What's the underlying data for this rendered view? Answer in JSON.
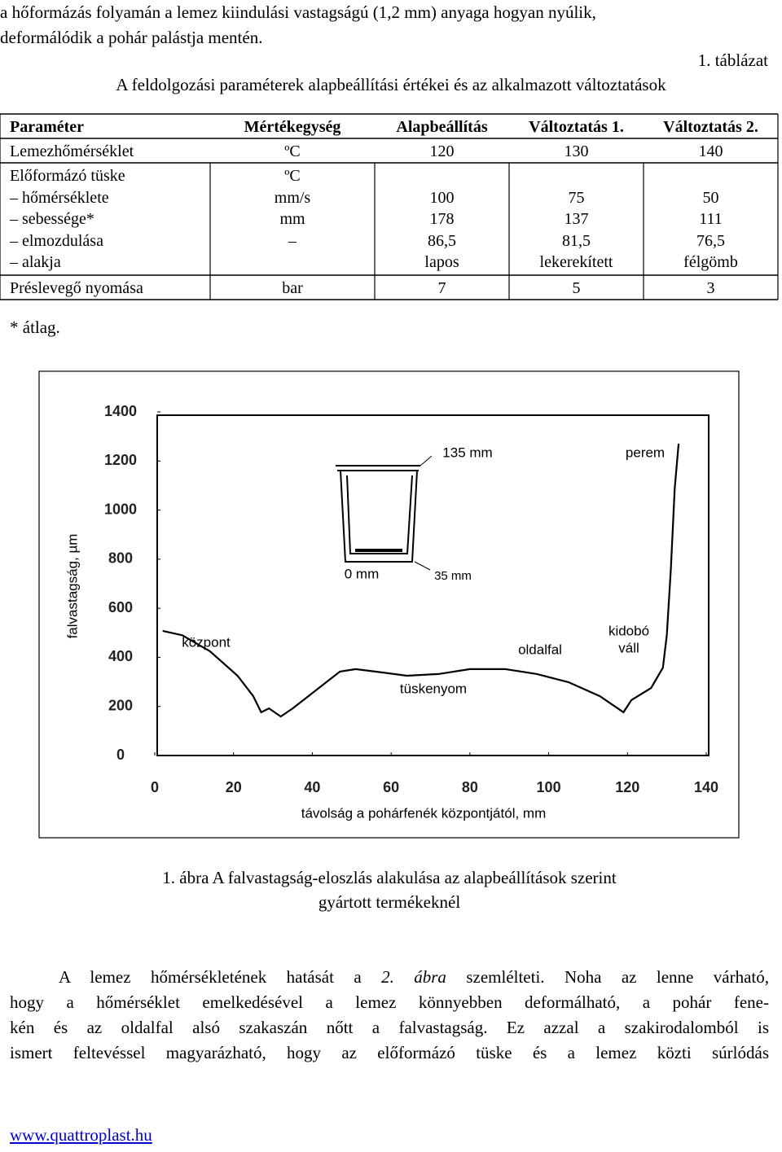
{
  "intro": [
    "a hőformázás folyamán a lemez kiindulási vastagságú (1,2 mm) anyaga hogyan nyúlik,",
    "deformálódik a pohár palástja mentén."
  ],
  "table_caption": {
    "number": "1. táblázat",
    "title": "A feldolgozási paraméterek alapbeállítási értékei és az alkalmazott változtatások"
  },
  "table": {
    "header": [
      "Paraméter",
      "Mértékegység",
      "Alapbeállítás",
      "Változtatás 1.",
      "Változtatás 2."
    ],
    "row1": [
      "Lemezhőmérséklet",
      "ºC",
      "120",
      "130",
      "140"
    ],
    "group": [
      [
        "Előformázó tüske",
        "ºC",
        null,
        null,
        null
      ],
      [
        "– hőmérséklete",
        "mm/s",
        "100",
        "75",
        "50"
      ],
      [
        "– sebessége*",
        "mm",
        "178",
        "137",
        "111"
      ],
      [
        "– elmozdulása",
        "–",
        "86,5",
        "81,5",
        "76,5"
      ],
      [
        "– alakja",
        null,
        "lapos",
        "lekerekített",
        "félgömb"
      ]
    ],
    "last": [
      "Préslevegő nyomása",
      "bar",
      "7",
      "5",
      "3"
    ],
    "note": "* átlag."
  },
  "chart_data": {
    "type": "line",
    "color": "#000000",
    "ylabel": "falvastagság, µm",
    "xlabel": "távolság a pohárfenék központjától, mm",
    "x": [
      2,
      7,
      14,
      21,
      25,
      27,
      29,
      32,
      35,
      39,
      43,
      47,
      51,
      58,
      64,
      72,
      80,
      89,
      97,
      105,
      113,
      119,
      121,
      126,
      129,
      130,
      131,
      132,
      133
    ],
    "values": [
      508,
      490,
      425,
      325,
      242,
      176,
      192,
      159,
      192,
      242,
      292,
      342,
      352,
      338,
      325,
      332,
      352,
      352,
      332,
      299,
      242,
      176,
      226,
      275,
      358,
      491,
      756,
      1088,
      1271
    ],
    "xlim": [
      0,
      140
    ],
    "xticks": [
      0,
      20,
      40,
      60,
      80,
      100,
      120,
      140
    ],
    "ylim": [
      0,
      1400
    ],
    "yticks": [
      0,
      200,
      400,
      600,
      800,
      1000,
      1200,
      1400
    ],
    "annotations": [
      "135 mm",
      "perem",
      "0 mm",
      "35 mm",
      "központ",
      "oldalfal",
      "kidobó",
      "váll",
      "tüskenyom"
    ]
  },
  "figure_caption": [
    "1. ábra A falvastagság-eloszlás alakulása az alapbeállítások szerint",
    "gyártott termékeknél"
  ],
  "body": [
    [
      "A lemez hőmérsékletének hatását a ",
      "2. ábra",
      " szemlélteti. Noha az lenne várható,"
    ],
    [
      "hogy a hőmérséklet emelkedésével a lemez könnyebben deformálható, a pohár fene-"
    ],
    [
      "kén és az oldalfal alsó szakaszán nőtt a falvastagság. Ez azzal a szakirodalomból is"
    ],
    [
      "ismert feltevéssel magyarázható, hogy az előformázó tüske és a lemez közti súrlódás"
    ]
  ],
  "footer": "www.quattroplast.hu"
}
